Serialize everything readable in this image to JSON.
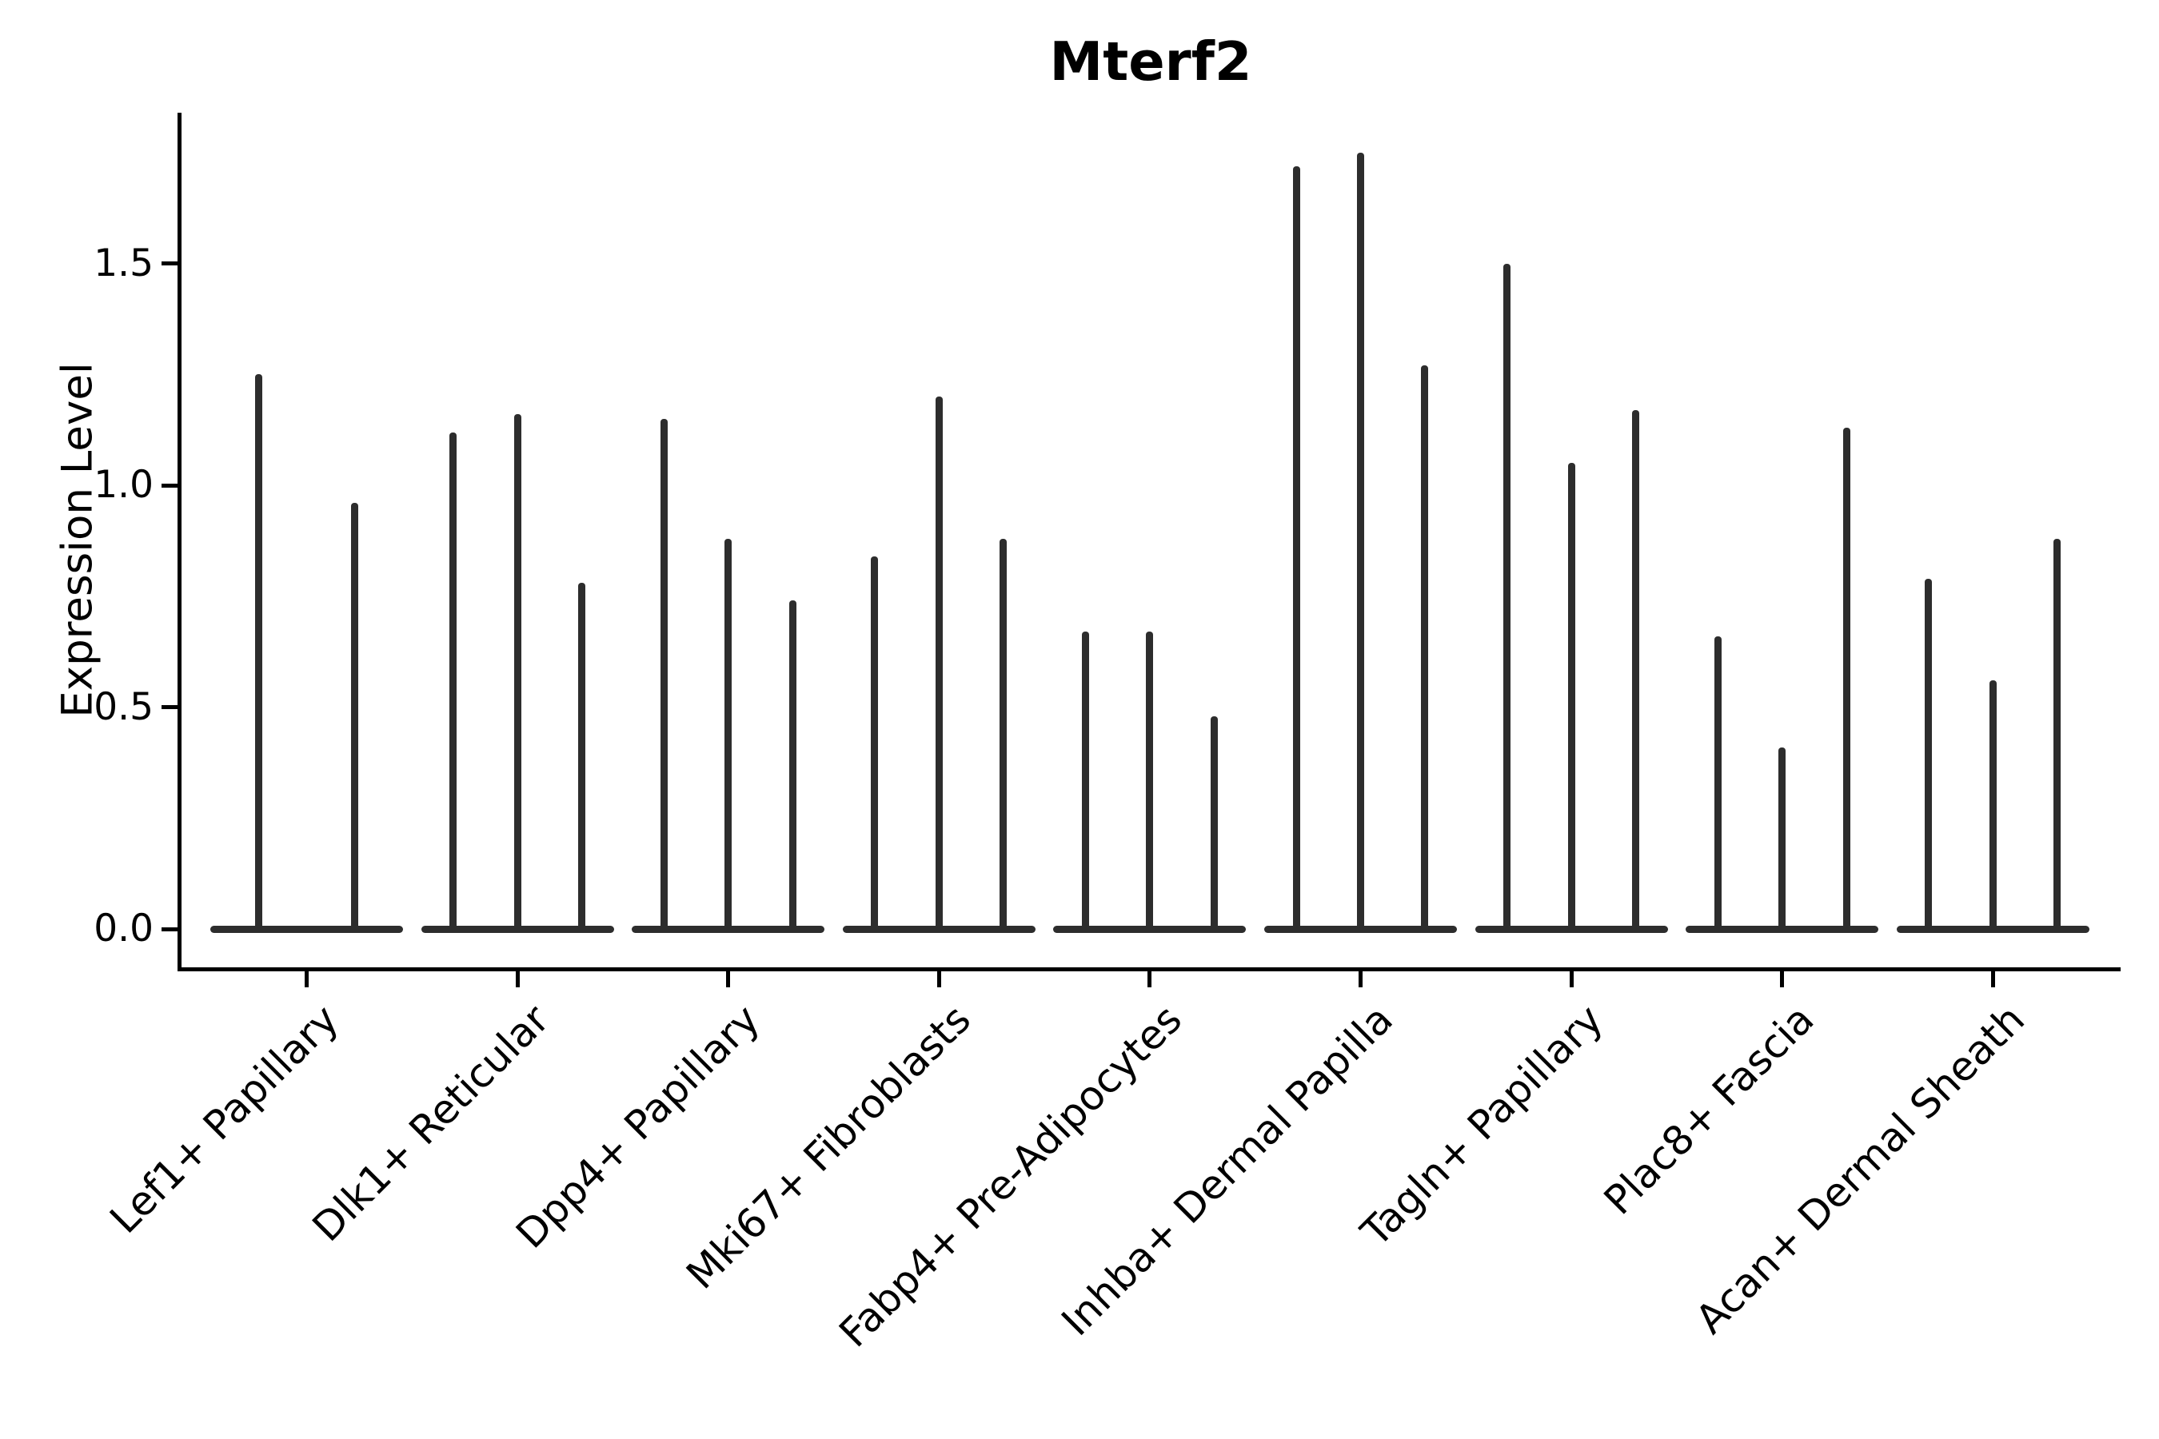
{
  "chart_data": {
    "type": "violin",
    "title": "Mterf2",
    "ylabel": "Expression Level",
    "xlabel": "",
    "ylim": [
      -0.09,
      1.84
    ],
    "yticks": [
      0.0,
      0.5,
      1.0,
      1.5
    ],
    "ytick_labels": [
      "0.0",
      "0.5",
      "1.0",
      "1.5"
    ],
    "grid": false,
    "legend": "none",
    "categories": [
      "Lef1+ Papillary",
      "Dlk1+ Reticular",
      "Dpp4+ Papillary",
      "Mki67+ Fibroblasts",
      "Fabp4+ Pre-Adipocytes",
      "Inhba+ Dermal Papilla",
      "Tagln+ Papillary",
      "Plac8+ Fascia",
      "Acan+ Dermal Sheath"
    ],
    "groups": [
      {
        "label": "Lef1+ Papillary",
        "violin_max_values": [
          1.25,
          0.96
        ]
      },
      {
        "label": "Dlk1+ Reticular",
        "violin_max_values": [
          1.12,
          1.16,
          0.78
        ]
      },
      {
        "label": "Dpp4+ Papillary",
        "violin_max_values": [
          1.15,
          0.88,
          0.74
        ]
      },
      {
        "label": "Mki67+ Fibroblasts",
        "violin_max_values": [
          0.84,
          1.2,
          0.88
        ]
      },
      {
        "label": "Fabp4+ Pre-Adipocytes",
        "violin_max_values": [
          0.67,
          0.67,
          0.48
        ]
      },
      {
        "label": "Inhba+ Dermal Papilla",
        "violin_max_values": [
          1.72,
          1.75,
          1.27
        ]
      },
      {
        "label": "Tagln+ Papillary",
        "violin_max_values": [
          1.5,
          1.05,
          1.17
        ]
      },
      {
        "label": "Plac8+ Fascia",
        "violin_max_values": [
          0.66,
          0.41,
          1.13
        ]
      },
      {
        "label": "Acan+ Dermal Sheath",
        "violin_max_values": [
          0.79,
          0.56,
          0.88
        ]
      }
    ],
    "colors": {
      "violin": "#2d2d2d",
      "axis": "#000000",
      "text": "#000000",
      "background": "#ffffff"
    },
    "annotation": "violins collapsed to near-zero width spikes; baseline bodies at 0"
  }
}
